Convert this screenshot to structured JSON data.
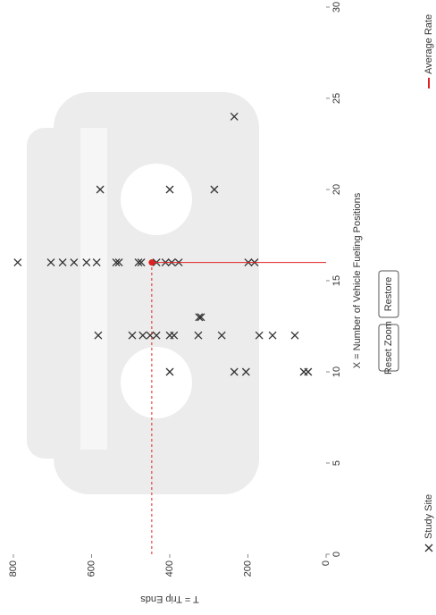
{
  "chart_data": {
    "type": "scatter",
    "x_label": "X = Number of Vehicle Fueling Positions",
    "y_label": "T = Trip Ends",
    "xlim": [
      0,
      30
    ],
    "xticks": [
      0,
      5,
      10,
      15,
      20,
      25,
      30
    ],
    "ylim": [
      0,
      800
    ],
    "yticks": [
      0,
      200,
      400,
      600,
      800
    ],
    "series": [
      {
        "name": "Study Site",
        "color": "#333333",
        "x": [
          10,
          10,
          10,
          10,
          10,
          12,
          12,
          12,
          12,
          12,
          12,
          12,
          12,
          12,
          12,
          12,
          12,
          13,
          13,
          16,
          16,
          16,
          16,
          16,
          16,
          16,
          16,
          16,
          16,
          16,
          16,
          16,
          16,
          16,
          16,
          20,
          20,
          20,
          24
        ],
        "values": [
          400,
          235,
          205,
          57,
          46,
          583,
          496,
          469,
          450,
          434,
          400,
          389,
          327,
          267,
          171,
          137,
          80,
          325,
          320,
          789,
          704,
          674,
          645,
          613,
          587,
          537,
          530,
          480,
          473,
          434,
          411,
          395,
          377,
          199,
          183,
          578,
          400,
          286,
          235
        ]
      },
      {
        "name": "Average Rate",
        "color": "#e02020",
        "x": [
          16
        ],
        "values": [
          446
        ]
      }
    ]
  },
  "controls": [
    "Reset Zoom",
    "Restore"
  ]
}
